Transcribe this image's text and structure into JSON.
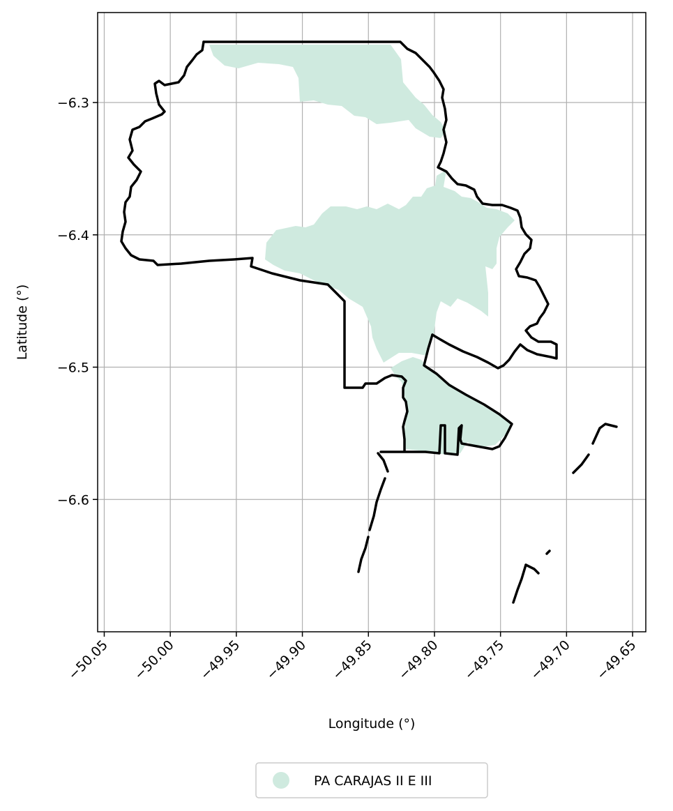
{
  "chart_data": {
    "type": "map",
    "xlabel": "Longitude (°)",
    "ylabel": "Latitude (°)",
    "xlim": [
      -50.055,
      -49.64
    ],
    "ylim": [
      -6.7,
      -6.232
    ],
    "x_ticks": [
      -50.05,
      -50.0,
      -49.95,
      -49.9,
      -49.85,
      -49.8,
      -49.75,
      -49.7,
      -49.65
    ],
    "x_tick_labels": [
      "−50.05",
      "−50.00",
      "−49.95",
      "−49.90",
      "−49.85",
      "−49.80",
      "−49.75",
      "−49.70",
      "−49.65"
    ],
    "y_ticks": [
      -6.3,
      -6.4,
      -6.5,
      -6.6
    ],
    "y_tick_labels": [
      "−6.3",
      "−6.4",
      "−6.5",
      "−6.6"
    ],
    "grid": true,
    "legend": {
      "placement": "bottom-center",
      "entries": [
        "PA CARAJAS II E III"
      ]
    },
    "colors": {
      "fill": "#cfeadf",
      "boundary": "#000000",
      "grid": "#b0b0b0"
    }
  }
}
